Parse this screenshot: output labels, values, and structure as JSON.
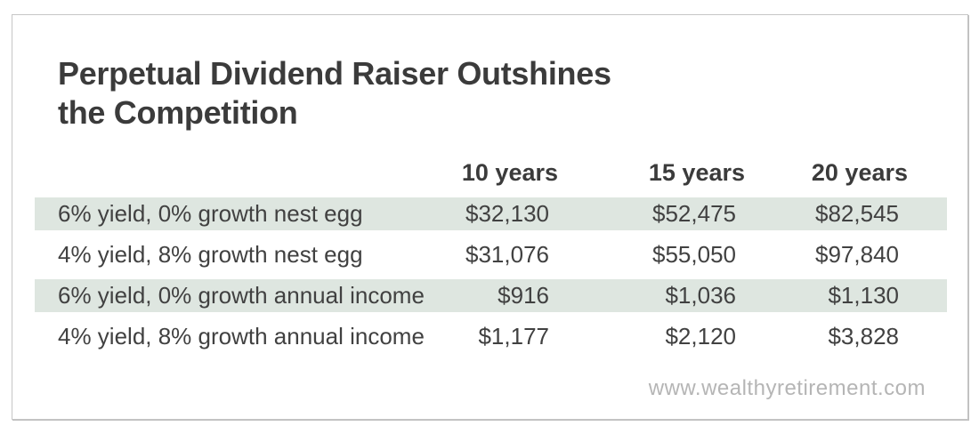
{
  "header": {
    "title_line1": "Perpetual Dividend Raiser Outshines",
    "title_line2": "the Competition"
  },
  "chart_data": {
    "type": "table",
    "title": "Perpetual Dividend Raiser Outshines the Competition",
    "columns": [
      "10 years",
      "15 years",
      "20 years"
    ],
    "rows": [
      {
        "label": "6% yield, 0% growth nest egg",
        "values": [
          "$32,130",
          "$52,475",
          "$82,545"
        ]
      },
      {
        "label": "4% yield, 8% growth nest egg",
        "values": [
          "$31,076",
          "$55,050",
          "$97,840"
        ]
      },
      {
        "label": "6% yield, 0% growth annual income",
        "values": [
          "$916",
          "$1,036",
          "$1,130"
        ]
      },
      {
        "label": "4% yield, 8% growth annual income",
        "values": [
          "$1,177",
          "$2,120",
          "$3,828"
        ]
      }
    ],
    "row_shading": [
      true,
      false,
      true,
      false
    ],
    "grid": false,
    "legend_position": "none"
  },
  "footer": {
    "watermark": "www.wealthyretirement.com"
  },
  "colors": {
    "row_shade": "#dee6e0",
    "title_text": "#3b3b3b",
    "body_text": "#414141",
    "card_border": "#c6c6c6",
    "watermark_text": "#b5b5b5"
  }
}
